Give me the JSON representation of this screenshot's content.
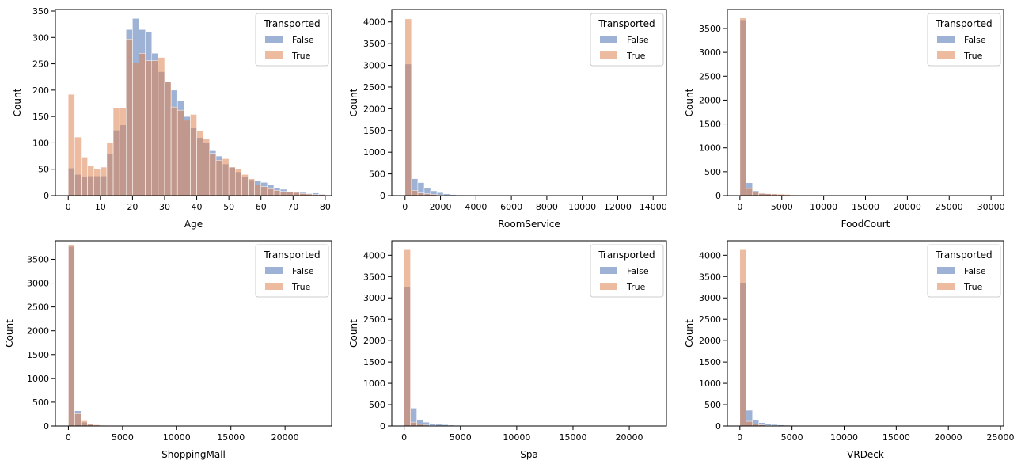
{
  "chart_data": [
    {
      "type": "bar",
      "xlabel": "Age",
      "ylabel": "Count",
      "xlim": [
        -4,
        82
      ],
      "ylim": [
        0,
        353
      ],
      "xticks": [
        0,
        10,
        20,
        30,
        40,
        50,
        60,
        70,
        80
      ],
      "xtick_labels": [
        "0",
        "10",
        "20",
        "30",
        "40",
        "50",
        "60",
        "70",
        "80"
      ],
      "yticks": [
        0,
        50,
        100,
        150,
        200,
        250,
        300,
        350
      ],
      "ytick_labels": [
        "0",
        "50",
        "100",
        "150",
        "200",
        "250",
        "300",
        "350"
      ],
      "bin_start": 0,
      "bin_width": 2,
      "legend": {
        "title": "Transported",
        "placement": "upper right"
      },
      "series": [
        {
          "name": "False",
          "color": "#4c72b0",
          "values": [
            52,
            40,
            35,
            37,
            37,
            37,
            80,
            124,
            134,
            315,
            336,
            315,
            310,
            270,
            235,
            215,
            200,
            180,
            150,
            128,
            110,
            100,
            85,
            75,
            60,
            54,
            45,
            35,
            30,
            28,
            25,
            20,
            15,
            12,
            8,
            7,
            6,
            4,
            5,
            3
          ]
        },
        {
          "name": "True",
          "color": "#dd8452",
          "values": [
            192,
            111,
            73,
            56,
            51,
            54,
            101,
            166,
            166,
            297,
            252,
            270,
            256,
            256,
            262,
            216,
            168,
            162,
            143,
            154,
            123,
            107,
            80,
            67,
            70,
            54,
            50,
            40,
            32,
            20,
            17,
            13,
            10,
            8,
            7,
            6,
            4,
            3,
            2,
            2
          ]
        }
      ]
    },
    {
      "type": "bar",
      "xlabel": "RoomService",
      "ylabel": "Count",
      "xlim": [
        -750,
        14750
      ],
      "ylim": [
        0,
        4287
      ],
      "xticks": [
        0,
        2000,
        4000,
        6000,
        8000,
        10000,
        12000,
        14000
      ],
      "xtick_labels": [
        "0",
        "2000",
        "4000",
        "6000",
        "8000",
        "10000",
        "12000",
        "14000"
      ],
      "yticks": [
        0,
        500,
        1000,
        1500,
        2000,
        2500,
        3000,
        3500,
        4000
      ],
      "ytick_labels": [
        "0",
        "500",
        "1000",
        "1500",
        "2000",
        "2500",
        "3000",
        "3500",
        "4000"
      ],
      "bin_start": 0,
      "bin_width": 360,
      "legend": {
        "title": "Transported",
        "placement": "upper right"
      },
      "series": [
        {
          "name": "False",
          "color": "#4c72b0",
          "values": [
            3030,
            390,
            300,
            170,
            110,
            70,
            40,
            25,
            15,
            10,
            6,
            4,
            3,
            2,
            2,
            1,
            1,
            1,
            0,
            0,
            0,
            0,
            0,
            0,
            0,
            0,
            0,
            0,
            0,
            0,
            0,
            0,
            0,
            0,
            0,
            0,
            0,
            0,
            0,
            1
          ]
        },
        {
          "name": "True",
          "color": "#dd8452",
          "values": [
            4070,
            120,
            60,
            40,
            30,
            15,
            10,
            8,
            5,
            4,
            2,
            2,
            1,
            1,
            0,
            0,
            0,
            0,
            0,
            0,
            0,
            0,
            0,
            0,
            0,
            0,
            0,
            0,
            0,
            0,
            0,
            0,
            0,
            0,
            0,
            0,
            0,
            0,
            0,
            0
          ]
        }
      ]
    },
    {
      "type": "bar",
      "xlabel": "FoodCourt",
      "ylabel": "Count",
      "xlim": [
        -1500,
        31500
      ],
      "ylim": [
        0,
        3898
      ],
      "xticks": [
        0,
        5000,
        10000,
        15000,
        20000,
        25000,
        30000
      ],
      "xtick_labels": [
        "0",
        "5000",
        "10000",
        "15000",
        "20000",
        "25000",
        "30000"
      ],
      "yticks": [
        0,
        500,
        1000,
        1500,
        2000,
        2500,
        3000,
        3500
      ],
      "ytick_labels": [
        "0",
        "500",
        "1000",
        "1500",
        "2000",
        "2500",
        "3000",
        "3500"
      ],
      "bin_start": 0,
      "bin_width": 750,
      "legend": {
        "title": "Transported",
        "placement": "upper right"
      },
      "series": [
        {
          "name": "False",
          "color": "#4c72b0",
          "values": [
            3680,
            270,
            100,
            55,
            40,
            30,
            20,
            12,
            8,
            5,
            4,
            3,
            2,
            2,
            1,
            1,
            1,
            0,
            0,
            0,
            0,
            0,
            0,
            0,
            0,
            0,
            0,
            0,
            0,
            0,
            0,
            0,
            0,
            0,
            0,
            0,
            0,
            0,
            0,
            1
          ]
        },
        {
          "name": "True",
          "color": "#dd8452",
          "values": [
            3720,
            150,
            70,
            45,
            40,
            35,
            30,
            25,
            15,
            10,
            8,
            6,
            4,
            3,
            2,
            2,
            1,
            1,
            1,
            0,
            0,
            0,
            0,
            0,
            0,
            0,
            0,
            0,
            0,
            0,
            0,
            0,
            0,
            0,
            0,
            0,
            0,
            0,
            0,
            0
          ]
        }
      ]
    },
    {
      "type": "bar",
      "xlabel": "ShoppingMall",
      "ylabel": "Count",
      "xlim": [
        -1200,
        24300
      ],
      "ylim": [
        0,
        3890
      ],
      "xticks": [
        0,
        5000,
        10000,
        15000,
        20000
      ],
      "xtick_labels": [
        "0",
        "5000",
        "10000",
        "15000",
        "20000"
      ],
      "yticks": [
        0,
        500,
        1000,
        1500,
        2000,
        2500,
        3000,
        3500
      ],
      "ytick_labels": [
        "0",
        "500",
        "1000",
        "1500",
        "2000",
        "2500",
        "3000",
        "3500"
      ],
      "bin_start": 0,
      "bin_width": 580,
      "legend": {
        "title": "Transported",
        "placement": "upper right"
      },
      "series": [
        {
          "name": "False",
          "color": "#4c72b0",
          "values": [
            3770,
            320,
            80,
            30,
            15,
            8,
            5,
            3,
            2,
            1,
            1,
            0,
            0,
            0,
            0,
            0,
            0,
            0,
            0,
            0,
            0,
            0,
            0,
            0,
            0,
            0,
            0,
            0,
            0,
            0,
            0,
            0,
            0,
            0,
            0,
            0,
            0,
            0,
            0,
            0
          ]
        },
        {
          "name": "True",
          "color": "#dd8452",
          "values": [
            3800,
            260,
            110,
            50,
            25,
            15,
            10,
            6,
            4,
            3,
            2,
            1,
            1,
            0,
            0,
            0,
            0,
            0,
            0,
            0,
            0,
            0,
            0,
            0,
            0,
            0,
            0,
            0,
            0,
            0,
            0,
            0,
            0,
            0,
            0,
            0,
            0,
            0,
            0,
            1
          ]
        }
      ]
    },
    {
      "type": "bar",
      "xlabel": "Spa",
      "ylabel": "Count",
      "xlim": [
        -1100,
        23300
      ],
      "ylim": [
        0,
        4340
      ],
      "xticks": [
        0,
        5000,
        10000,
        15000,
        20000
      ],
      "xtick_labels": [
        "0",
        "5000",
        "10000",
        "15000",
        "20000"
      ],
      "yticks": [
        0,
        500,
        1000,
        1500,
        2000,
        2500,
        3000,
        3500,
        4000
      ],
      "ytick_labels": [
        "0",
        "500",
        "1000",
        "1500",
        "2000",
        "2500",
        "3000",
        "3500",
        "4000"
      ],
      "bin_start": 0,
      "bin_width": 560,
      "legend": {
        "title": "Transported",
        "placement": "upper right"
      },
      "series": [
        {
          "name": "False",
          "color": "#4c72b0",
          "values": [
            3250,
            420,
            150,
            90,
            60,
            40,
            30,
            20,
            15,
            10,
            8,
            6,
            5,
            4,
            3,
            2,
            2,
            1,
            1,
            1,
            0,
            0,
            0,
            0,
            0,
            0,
            0,
            0,
            0,
            0,
            0,
            0,
            0,
            0,
            0,
            0,
            0,
            0,
            0,
            1
          ]
        },
        {
          "name": "True",
          "color": "#dd8452",
          "values": [
            4130,
            90,
            40,
            20,
            10,
            6,
            4,
            3,
            2,
            1,
            1,
            0,
            0,
            0,
            0,
            0,
            0,
            0,
            0,
            0,
            0,
            0,
            0,
            0,
            0,
            0,
            0,
            0,
            0,
            0,
            0,
            0,
            0,
            0,
            0,
            0,
            0,
            0,
            0,
            0
          ]
        }
      ]
    },
    {
      "type": "bar",
      "xlabel": "VRDeck",
      "ylabel": "Count",
      "xlim": [
        -1200,
        25300
      ],
      "ylim": [
        0,
        4340
      ],
      "xticks": [
        0,
        5000,
        10000,
        15000,
        20000,
        25000
      ],
      "xtick_labels": [
        "0",
        "5000",
        "10000",
        "15000",
        "20000",
        "25000"
      ],
      "yticks": [
        0,
        500,
        1000,
        1500,
        2000,
        2500,
        3000,
        3500,
        4000
      ],
      "ytick_labels": [
        "0",
        "500",
        "1000",
        "1500",
        "2000",
        "2500",
        "3000",
        "3500",
        "4000"
      ],
      "bin_start": 0,
      "bin_width": 605,
      "legend": {
        "title": "Transported",
        "placement": "upper right"
      },
      "series": [
        {
          "name": "False",
          "color": "#4c72b0",
          "values": [
            3360,
            370,
            150,
            80,
            50,
            35,
            25,
            18,
            12,
            8,
            6,
            5,
            4,
            3,
            2,
            2,
            1,
            1,
            1,
            0,
            0,
            0,
            0,
            0,
            0,
            0,
            0,
            0,
            0,
            0,
            0,
            0,
            0,
            0,
            0,
            0,
            0,
            0,
            0,
            1
          ]
        },
        {
          "name": "True",
          "color": "#dd8452",
          "values": [
            4130,
            110,
            50,
            25,
            12,
            8,
            5,
            3,
            2,
            1,
            1,
            0,
            0,
            0,
            0,
            0,
            0,
            0,
            0,
            0,
            0,
            0,
            0,
            0,
            0,
            0,
            0,
            0,
            0,
            0,
            0,
            0,
            0,
            0,
            0,
            0,
            0,
            0,
            0,
            0
          ]
        }
      ]
    }
  ]
}
